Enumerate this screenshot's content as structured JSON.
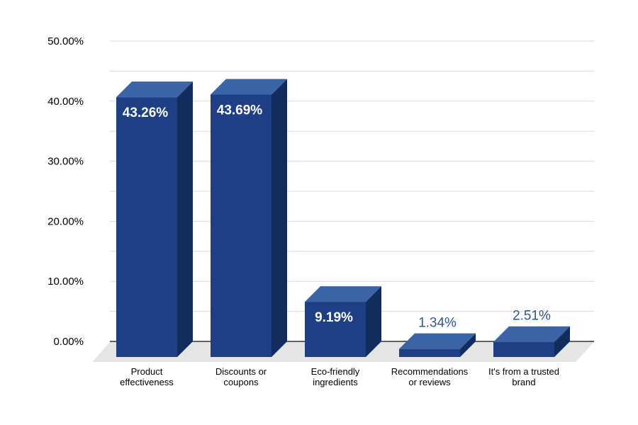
{
  "chart_data": {
    "type": "bar",
    "categories": [
      [
        "Product",
        "effectiveness"
      ],
      [
        "Discounts or",
        "coupons"
      ],
      [
        "Eco-friendly",
        "ingredients"
      ],
      [
        "Recommendations",
        "or reviews"
      ],
      [
        "It's from a trusted",
        "brand"
      ]
    ],
    "values": [
      43.26,
      43.69,
      9.19,
      1.34,
      2.51
    ],
    "value_labels": [
      "43.26%",
      "43.69%",
      "9.19%",
      "1.34%",
      "2.51%"
    ],
    "y_ticks": [
      "0.00%",
      "10.00%",
      "20.00%",
      "30.00%",
      "40.00%",
      "50.00%"
    ],
    "ylim": [
      0,
      50
    ],
    "grid": true,
    "style": "3d",
    "colors": {
      "front": "#1e3f86",
      "top": "#3b64a6",
      "side": "#132c5e",
      "floor": "#e5e5e5",
      "grid": "#d9d9d9",
      "label_outside": "#2b5797"
    }
  }
}
